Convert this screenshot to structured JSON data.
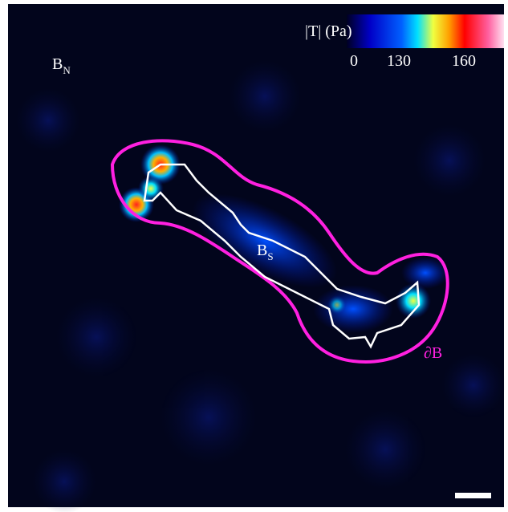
{
  "colorbar": {
    "label": "|T| (Pa)",
    "ticks": [
      "0",
      "130",
      "160"
    ]
  },
  "labels": {
    "outer_region": {
      "main": "B",
      "sub": "N"
    },
    "cell_region": {
      "main": "B",
      "sub": "S"
    },
    "boundary": "∂B"
  }
}
